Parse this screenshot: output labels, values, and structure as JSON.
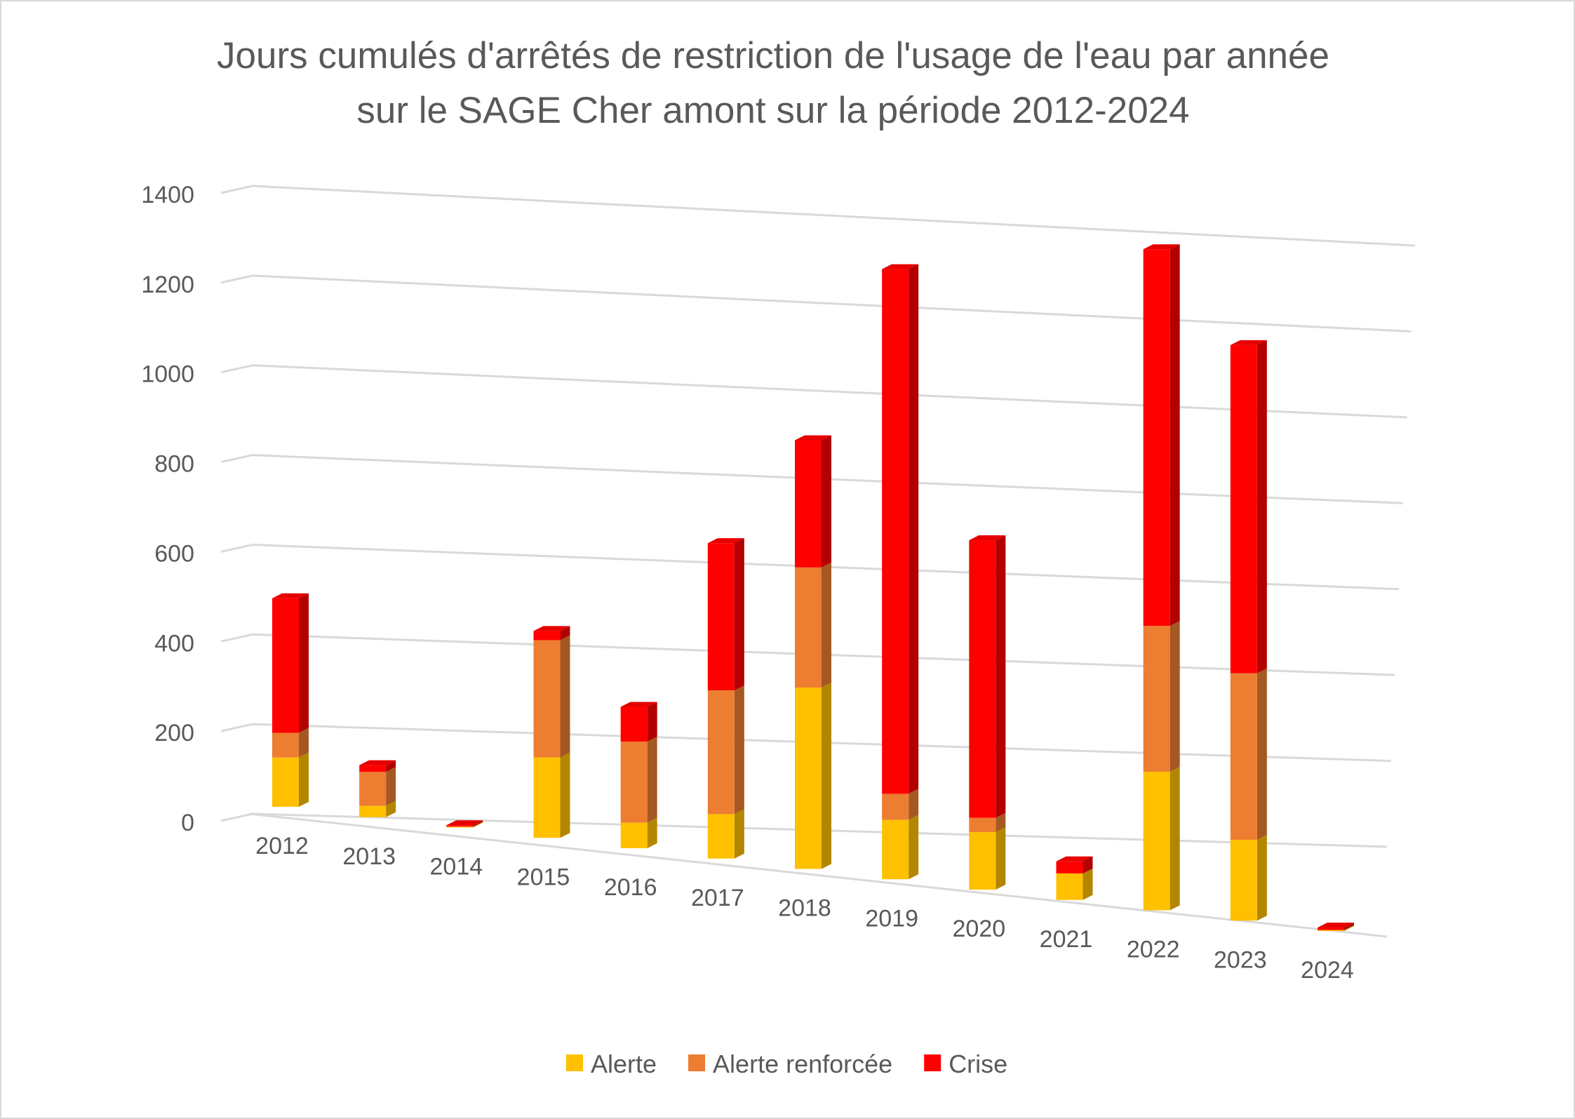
{
  "colors": {
    "Alerte": "#ffc000",
    "Alerte renforcée": "#ed7d31",
    "Crise": "#ff0000"
  },
  "chart_data": {
    "type": "bar",
    "stacked": true,
    "style": "3d-perspective",
    "title": "Jours cumulés d'arrêtés de restriction de l'usage de l'eau par année sur le SAGE Cher amont sur la période 2012-2024",
    "title_lines": [
      "Jours cumulés d'arrêtés de restriction de l'usage de l'eau par année",
      "sur le SAGE Cher amont sur la période 2012-2024"
    ],
    "categories": [
      "2012",
      "2013",
      "2014",
      "2015",
      "2016",
      "2017",
      "2018",
      "2019",
      "2020",
      "2021",
      "2022",
      "2023",
      "2024"
    ],
    "series": [
      {
        "name": "Alerte",
        "values": [
          110,
          25,
          2,
          175,
          55,
          95,
          385,
          125,
          120,
          55,
          285,
          165,
          2
        ]
      },
      {
        "name": "Alerte renforcée",
        "values": [
          55,
          75,
          0,
          255,
          175,
          265,
          255,
          55,
          30,
          0,
          300,
          340,
          0
        ]
      },
      {
        "name": "Crise",
        "values": [
          300,
          15,
          3,
          20,
          75,
          315,
          270,
          1105,
          580,
          25,
          775,
          670,
          5
        ]
      }
    ],
    "xlabel": "",
    "ylabel": "",
    "ylim": [
      0,
      1400
    ],
    "yticks": [
      "0",
      "200",
      "400",
      "600",
      "800",
      "1000",
      "1200",
      "1400"
    ],
    "grid": true,
    "legend": "bottom"
  }
}
